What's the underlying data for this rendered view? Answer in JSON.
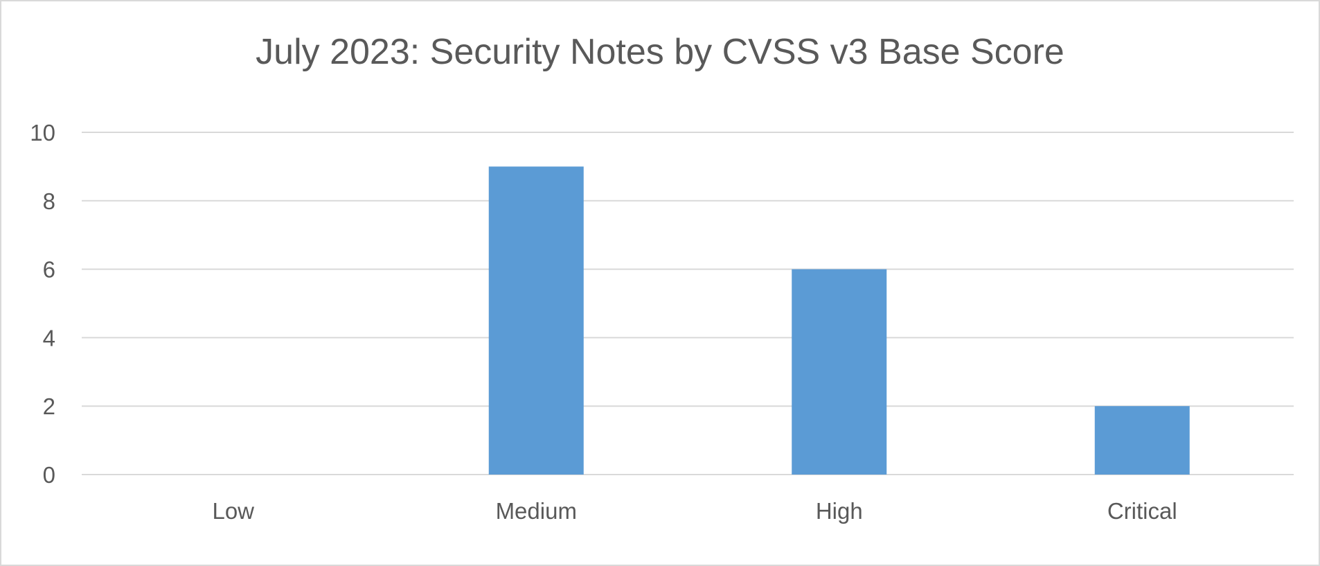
{
  "chart_data": {
    "type": "bar",
    "title": "July 2023: Security Notes by CVSS v3 Base Score",
    "xlabel": "",
    "ylabel": "",
    "categories": [
      "Low",
      "Medium",
      "High",
      "Critical"
    ],
    "values": [
      0,
      9,
      6,
      2
    ],
    "ylim": [
      0,
      10
    ],
    "yticks": [
      "0",
      "2",
      "4",
      "6",
      "8",
      "10"
    ],
    "grid": true,
    "legend": "none",
    "colors": {
      "bar": "#5b9bd5",
      "grid": "#d9d9d9",
      "text": "#595959"
    }
  }
}
